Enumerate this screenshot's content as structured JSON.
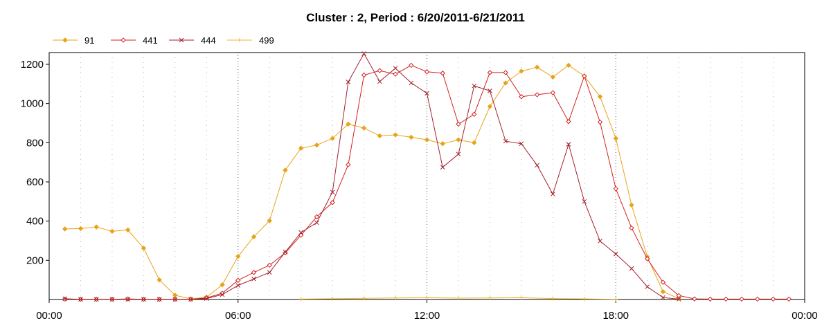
{
  "chart_data": {
    "type": "line",
    "title": "Cluster : 2, Period : 6/20/2011-6/21/2011",
    "xlabel": "",
    "ylabel": "",
    "x_range_hours": [
      0,
      24
    ],
    "x_ticks": [
      {
        "hour": 0,
        "label": "00:00"
      },
      {
        "hour": 6,
        "label": "06:00"
      },
      {
        "hour": 12,
        "label": "12:00"
      },
      {
        "hour": 18,
        "label": "18:00"
      },
      {
        "hour": 24,
        "label": "00:00"
      }
    ],
    "ylim": [
      0,
      1260
    ],
    "y_ticks": [
      200,
      400,
      600,
      800,
      1000,
      1200
    ],
    "grid": "dotted",
    "legend_position": "top-left",
    "colors": {
      "orange": "#e8a317",
      "red": "#d42020",
      "darkred": "#a3202a",
      "gold": "#e8b830"
    },
    "series": [
      {
        "name": "91",
        "color": "#e8a317",
        "marker": "diamond-filled",
        "points": [
          [
            0.5,
            360
          ],
          [
            1,
            362
          ],
          [
            1.5,
            370
          ],
          [
            2,
            348
          ],
          [
            2.5,
            355
          ],
          [
            3,
            262
          ],
          [
            3.5,
            100
          ],
          [
            4,
            22
          ],
          [
            4.5,
            3
          ],
          [
            5,
            12
          ],
          [
            5.5,
            75
          ],
          [
            6,
            220
          ],
          [
            6.5,
            320
          ],
          [
            7,
            402
          ],
          [
            7.5,
            660
          ],
          [
            8,
            772
          ],
          [
            8.5,
            788
          ],
          [
            9,
            822
          ],
          [
            9.5,
            895
          ],
          [
            10,
            875
          ],
          [
            10.5,
            835
          ],
          [
            11,
            840
          ],
          [
            11.5,
            828
          ],
          [
            12,
            815
          ],
          [
            12.5,
            795
          ],
          [
            13,
            815
          ],
          [
            13.5,
            800
          ],
          [
            14,
            985
          ],
          [
            14.5,
            1105
          ],
          [
            15,
            1165
          ],
          [
            15.5,
            1185
          ],
          [
            16,
            1135
          ],
          [
            16.5,
            1195
          ],
          [
            17,
            1140
          ],
          [
            17.5,
            1035
          ],
          [
            18,
            822
          ],
          [
            18.5,
            482
          ],
          [
            19,
            218
          ],
          [
            19.5,
            40
          ],
          [
            20,
            5
          ]
        ]
      },
      {
        "name": "441",
        "color": "#d42020",
        "marker": "diamond-open",
        "points": [
          [
            0.5,
            2
          ],
          [
            1,
            1
          ],
          [
            1.5,
            1
          ],
          [
            2,
            1
          ],
          [
            2.5,
            3
          ],
          [
            3,
            1
          ],
          [
            3.5,
            1
          ],
          [
            4,
            1
          ],
          [
            4.5,
            1
          ],
          [
            5,
            8
          ],
          [
            5.5,
            32
          ],
          [
            6,
            98
          ],
          [
            6.5,
            138
          ],
          [
            7,
            175
          ],
          [
            7.5,
            238
          ],
          [
            8,
            328
          ],
          [
            8.5,
            422
          ],
          [
            9,
            495
          ],
          [
            9.5,
            688
          ],
          [
            10,
            1145
          ],
          [
            10.5,
            1168
          ],
          [
            11,
            1150
          ],
          [
            11.5,
            1195
          ],
          [
            12,
            1162
          ],
          [
            12.5,
            1155
          ],
          [
            13,
            895
          ],
          [
            13.5,
            945
          ],
          [
            14,
            1158
          ],
          [
            14.5,
            1158
          ],
          [
            15,
            1035
          ],
          [
            15.5,
            1045
          ],
          [
            16,
            1055
          ],
          [
            16.5,
            908
          ],
          [
            17,
            1140
          ],
          [
            17.5,
            905
          ],
          [
            18,
            565
          ],
          [
            18.5,
            365
          ],
          [
            19,
            208
          ],
          [
            19.5,
            88
          ],
          [
            20,
            20
          ],
          [
            20.5,
            3
          ],
          [
            21,
            2
          ],
          [
            21.5,
            2
          ],
          [
            22,
            2
          ],
          [
            22.5,
            2
          ],
          [
            23,
            2
          ],
          [
            23.5,
            2
          ]
        ]
      },
      {
        "name": "444",
        "color": "#a3202a",
        "marker": "x",
        "points": [
          [
            0.5,
            4
          ],
          [
            1,
            1
          ],
          [
            1.5,
            1
          ],
          [
            2,
            1
          ],
          [
            2.5,
            1
          ],
          [
            3,
            1
          ],
          [
            3.5,
            1
          ],
          [
            4,
            1
          ],
          [
            4.5,
            1
          ],
          [
            5,
            5
          ],
          [
            5.5,
            25
          ],
          [
            6,
            72
          ],
          [
            6.5,
            105
          ],
          [
            7,
            138
          ],
          [
            7.5,
            242
          ],
          [
            8,
            342
          ],
          [
            8.5,
            392
          ],
          [
            9,
            548
          ],
          [
            9.5,
            1110
          ],
          [
            10,
            1255
          ],
          [
            10.5,
            1112
          ],
          [
            11,
            1180
          ],
          [
            11.5,
            1105
          ],
          [
            12,
            1052
          ],
          [
            12.5,
            675
          ],
          [
            13,
            742
          ],
          [
            13.5,
            1090
          ],
          [
            14,
            1065
          ],
          [
            14.5,
            808
          ],
          [
            15,
            795
          ],
          [
            15.5,
            685
          ],
          [
            16,
            538
          ],
          [
            16.5,
            792
          ],
          [
            17,
            500
          ],
          [
            17.5,
            298
          ],
          [
            18,
            232
          ],
          [
            18.5,
            158
          ],
          [
            19,
            65
          ],
          [
            19.5,
            10
          ],
          [
            20,
            2
          ]
        ]
      },
      {
        "name": "499",
        "color": "#e8b830",
        "marker": "plus",
        "points": [
          [
            8,
            2
          ],
          [
            9,
            4
          ],
          [
            10,
            6
          ],
          [
            11,
            8
          ],
          [
            12,
            9
          ],
          [
            13,
            7
          ],
          [
            14,
            8
          ],
          [
            15,
            9
          ],
          [
            16,
            5
          ],
          [
            17,
            3
          ],
          [
            18,
            1
          ]
        ]
      }
    ]
  }
}
